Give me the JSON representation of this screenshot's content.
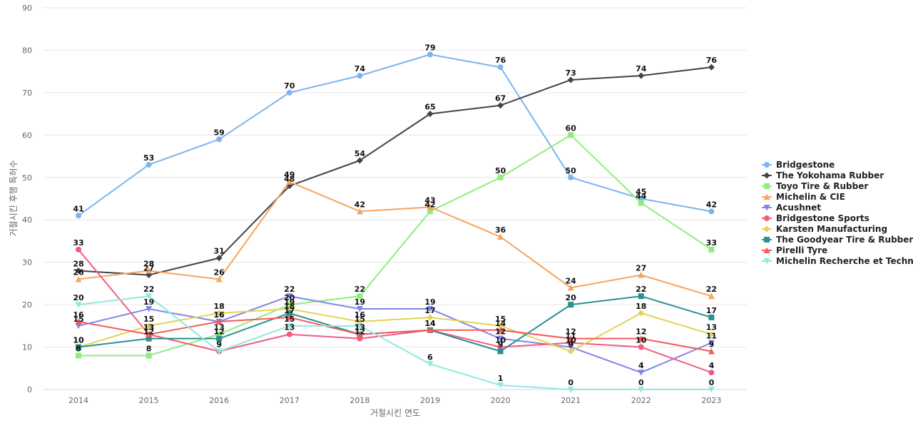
{
  "chart_data": {
    "type": "line",
    "title": "",
    "xlabel": "거절시킨 연도",
    "ylabel": "거절시킨 후행 특허수",
    "ylim": [
      0,
      90
    ],
    "yticks": [
      0,
      10,
      20,
      30,
      40,
      50,
      60,
      70,
      80,
      90
    ],
    "grid": true,
    "legend": "right",
    "x": [
      "2014",
      "2015",
      "2016",
      "2017",
      "2018",
      "2019",
      "2020",
      "2021",
      "2022",
      "2023"
    ],
    "series": [
      {
        "name": "Bridgestone",
        "color": "#7cb5ec",
        "marker": "circle",
        "values": [
          41,
          53,
          59,
          70,
          74,
          79,
          76,
          50,
          45,
          42
        ]
      },
      {
        "name": "The Yokohama Rubber",
        "color": "#434348",
        "marker": "diamond",
        "values": [
          28,
          27,
          31,
          48,
          54,
          65,
          67,
          73,
          74,
          76
        ]
      },
      {
        "name": "Toyo Tire & Rubber",
        "color": "#90ed7d",
        "marker": "square",
        "values": [
          8,
          8,
          13,
          20,
          22,
          42,
          50,
          60,
          44,
          33
        ]
      },
      {
        "name": "Michelin & CIE",
        "color": "#f7a35c",
        "marker": "triangle",
        "values": [
          26,
          28,
          26,
          49,
          42,
          43,
          36,
          24,
          27,
          22
        ]
      },
      {
        "name": "Acushnet",
        "color": "#8085e9",
        "marker": "triangle-down",
        "values": [
          15,
          19,
          16,
          22,
          19,
          19,
          12,
          10,
          4,
          11
        ]
      },
      {
        "name": "Bridgestone Sports",
        "color": "#f15c80",
        "marker": "circle",
        "values": [
          33,
          13,
          9,
          13,
          12,
          14,
          10,
          11,
          10,
          4
        ]
      },
      {
        "name": "Karsten Manufacturing",
        "color": "#e4d354",
        "marker": "diamond",
        "values": [
          10,
          15,
          18,
          19,
          16,
          17,
          15,
          9,
          18,
          13
        ]
      },
      {
        "name": "The Goodyear Tire & Rubber",
        "color": "#2b908f",
        "marker": "square",
        "values": [
          10,
          12,
          12,
          18,
          13,
          14,
          9,
          20,
          22,
          17
        ]
      },
      {
        "name": "Pirelli Tyre",
        "color": "#f45b5b",
        "marker": "triangle",
        "values": [
          16,
          13,
          16,
          17,
          13,
          14,
          14,
          12,
          12,
          9
        ]
      },
      {
        "name": "Michelin Recherche et Techn...",
        "color": "#91e8e1",
        "marker": "triangle-down",
        "values": [
          20,
          22,
          9,
          15,
          15,
          6,
          1,
          0,
          0,
          0
        ]
      }
    ]
  }
}
